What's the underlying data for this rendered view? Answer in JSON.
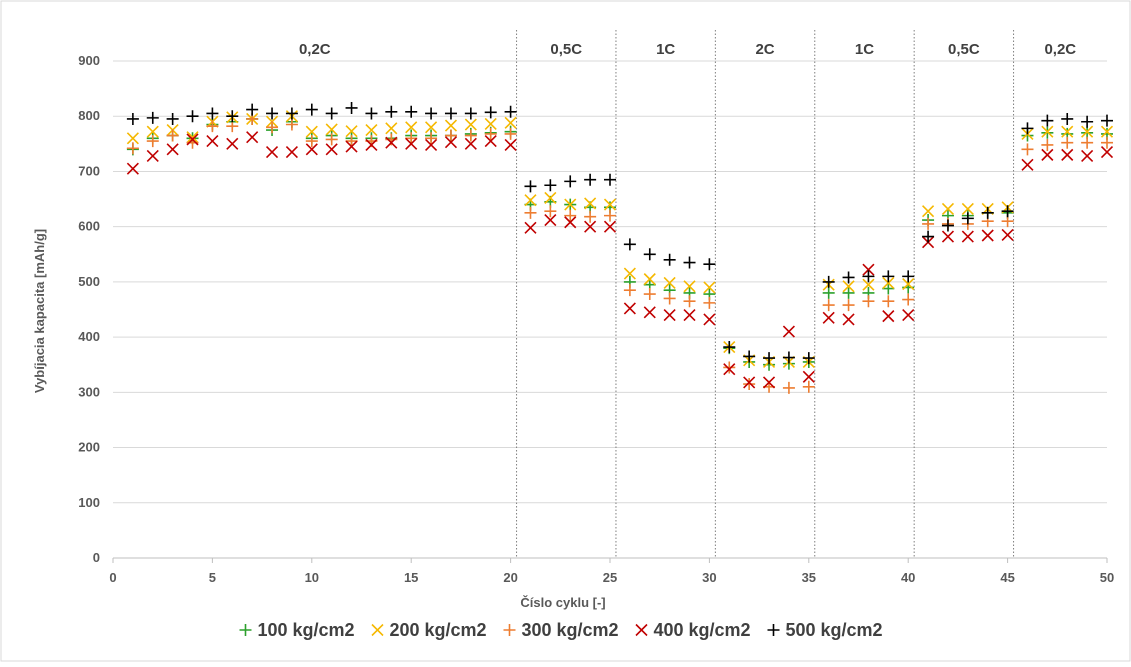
{
  "chart_data": {
    "type": "scatter",
    "xlabel": "Číslo cyklu [-]",
    "ylabel": "Vybíjacia kapacita [mAh/g]",
    "xlim": [
      0,
      50
    ],
    "ylim": [
      0,
      900
    ],
    "xticks": [
      0,
      5,
      10,
      15,
      20,
      25,
      30,
      35,
      40,
      45,
      50
    ],
    "yticks": [
      0,
      100,
      200,
      300,
      400,
      500,
      600,
      700,
      800,
      900
    ],
    "grid": "horizontal",
    "legend_position": "bottom",
    "phase_dividers": [
      20.3,
      25.3,
      30.3,
      35.3,
      40.3,
      45.3
    ],
    "phases": [
      {
        "label": "0,2C",
        "from": 0,
        "to": 20.3
      },
      {
        "label": "0,5C",
        "from": 20.3,
        "to": 25.3
      },
      {
        "label": "1C",
        "from": 25.3,
        "to": 30.3
      },
      {
        "label": "2C",
        "from": 30.3,
        "to": 35.3
      },
      {
        "label": "1C",
        "from": 35.3,
        "to": 40.3
      },
      {
        "label": "0,5C",
        "from": 40.3,
        "to": 45.3
      },
      {
        "label": "0,2C",
        "from": 45.3,
        "to": 50
      }
    ],
    "x": [
      1,
      2,
      3,
      4,
      5,
      6,
      7,
      8,
      9,
      10,
      11,
      12,
      13,
      14,
      15,
      16,
      17,
      18,
      19,
      20,
      21,
      22,
      23,
      24,
      25,
      26,
      27,
      28,
      29,
      30,
      31,
      32,
      33,
      34,
      35,
      36,
      37,
      38,
      39,
      40,
      41,
      42,
      43,
      44,
      45,
      46,
      47,
      48,
      49,
      50
    ],
    "series": [
      {
        "name": "100 kg/cm2",
        "marker": "plus",
        "color": "#2ca02c",
        "values": [
          740,
          760,
          765,
          760,
          785,
          790,
          795,
          775,
          790,
          760,
          765,
          760,
          760,
          760,
          765,
          765,
          765,
          768,
          770,
          772,
          640,
          645,
          640,
          635,
          635,
          500,
          495,
          485,
          480,
          478,
          380,
          355,
          350,
          352,
          355,
          480,
          480,
          480,
          488,
          490,
          612,
          620,
          620,
          625,
          625,
          765,
          770,
          768,
          770,
          768
        ]
      },
      {
        "name": "200 kg/cm2",
        "marker": "x",
        "color": "#f5b800",
        "values": [
          760,
          772,
          775,
          762,
          790,
          798,
          795,
          790,
          800,
          772,
          776,
          773,
          775,
          778,
          780,
          780,
          783,
          785,
          786,
          788,
          648,
          652,
          640,
          642,
          640,
          515,
          505,
          498,
          492,
          490,
          382,
          358,
          355,
          355,
          355,
          495,
          492,
          495,
          498,
          496,
          628,
          632,
          632,
          632,
          635,
          768,
          772,
          772,
          772,
          772
        ]
      },
      {
        "name": "300 kg/cm2",
        "marker": "plus",
        "color": "#ed7d31",
        "values": [
          742,
          755,
          765,
          752,
          782,
          782,
          795,
          780,
          785,
          755,
          758,
          755,
          755,
          758,
          760,
          760,
          765,
          765,
          768,
          768,
          625,
          628,
          620,
          618,
          620,
          485,
          478,
          470,
          465,
          462,
          345,
          315,
          310,
          308,
          310,
          458,
          458,
          465,
          465,
          468,
          605,
          605,
          605,
          610,
          610,
          740,
          748,
          752,
          752,
          752
        ]
      },
      {
        "name": "400 kg/cm2",
        "marker": "x",
        "color": "#c00000",
        "values": [
          705,
          728,
          740,
          758,
          755,
          750,
          762,
          735,
          735,
          740,
          740,
          745,
          748,
          752,
          750,
          748,
          753,
          750,
          755,
          748,
          598,
          612,
          608,
          600,
          600,
          452,
          445,
          440,
          440,
          432,
          342,
          318,
          318,
          410,
          328,
          435,
          432,
          522,
          438,
          440,
          572,
          582,
          582,
          584,
          585,
          712,
          730,
          730,
          728,
          735
        ]
      },
      {
        "name": "500 kg/cm2",
        "marker": "plus",
        "color": "#000000",
        "values": [
          795,
          797,
          795,
          800,
          805,
          800,
          812,
          805,
          805,
          812,
          805,
          815,
          805,
          808,
          808,
          805,
          805,
          805,
          807,
          808,
          673,
          675,
          682,
          685,
          685,
          568,
          550,
          540,
          535,
          532,
          382,
          365,
          362,
          363,
          362,
          500,
          508,
          510,
          510,
          510,
          582,
          602,
          615,
          625,
          628,
          778,
          792,
          795,
          790,
          792
        ]
      }
    ]
  }
}
